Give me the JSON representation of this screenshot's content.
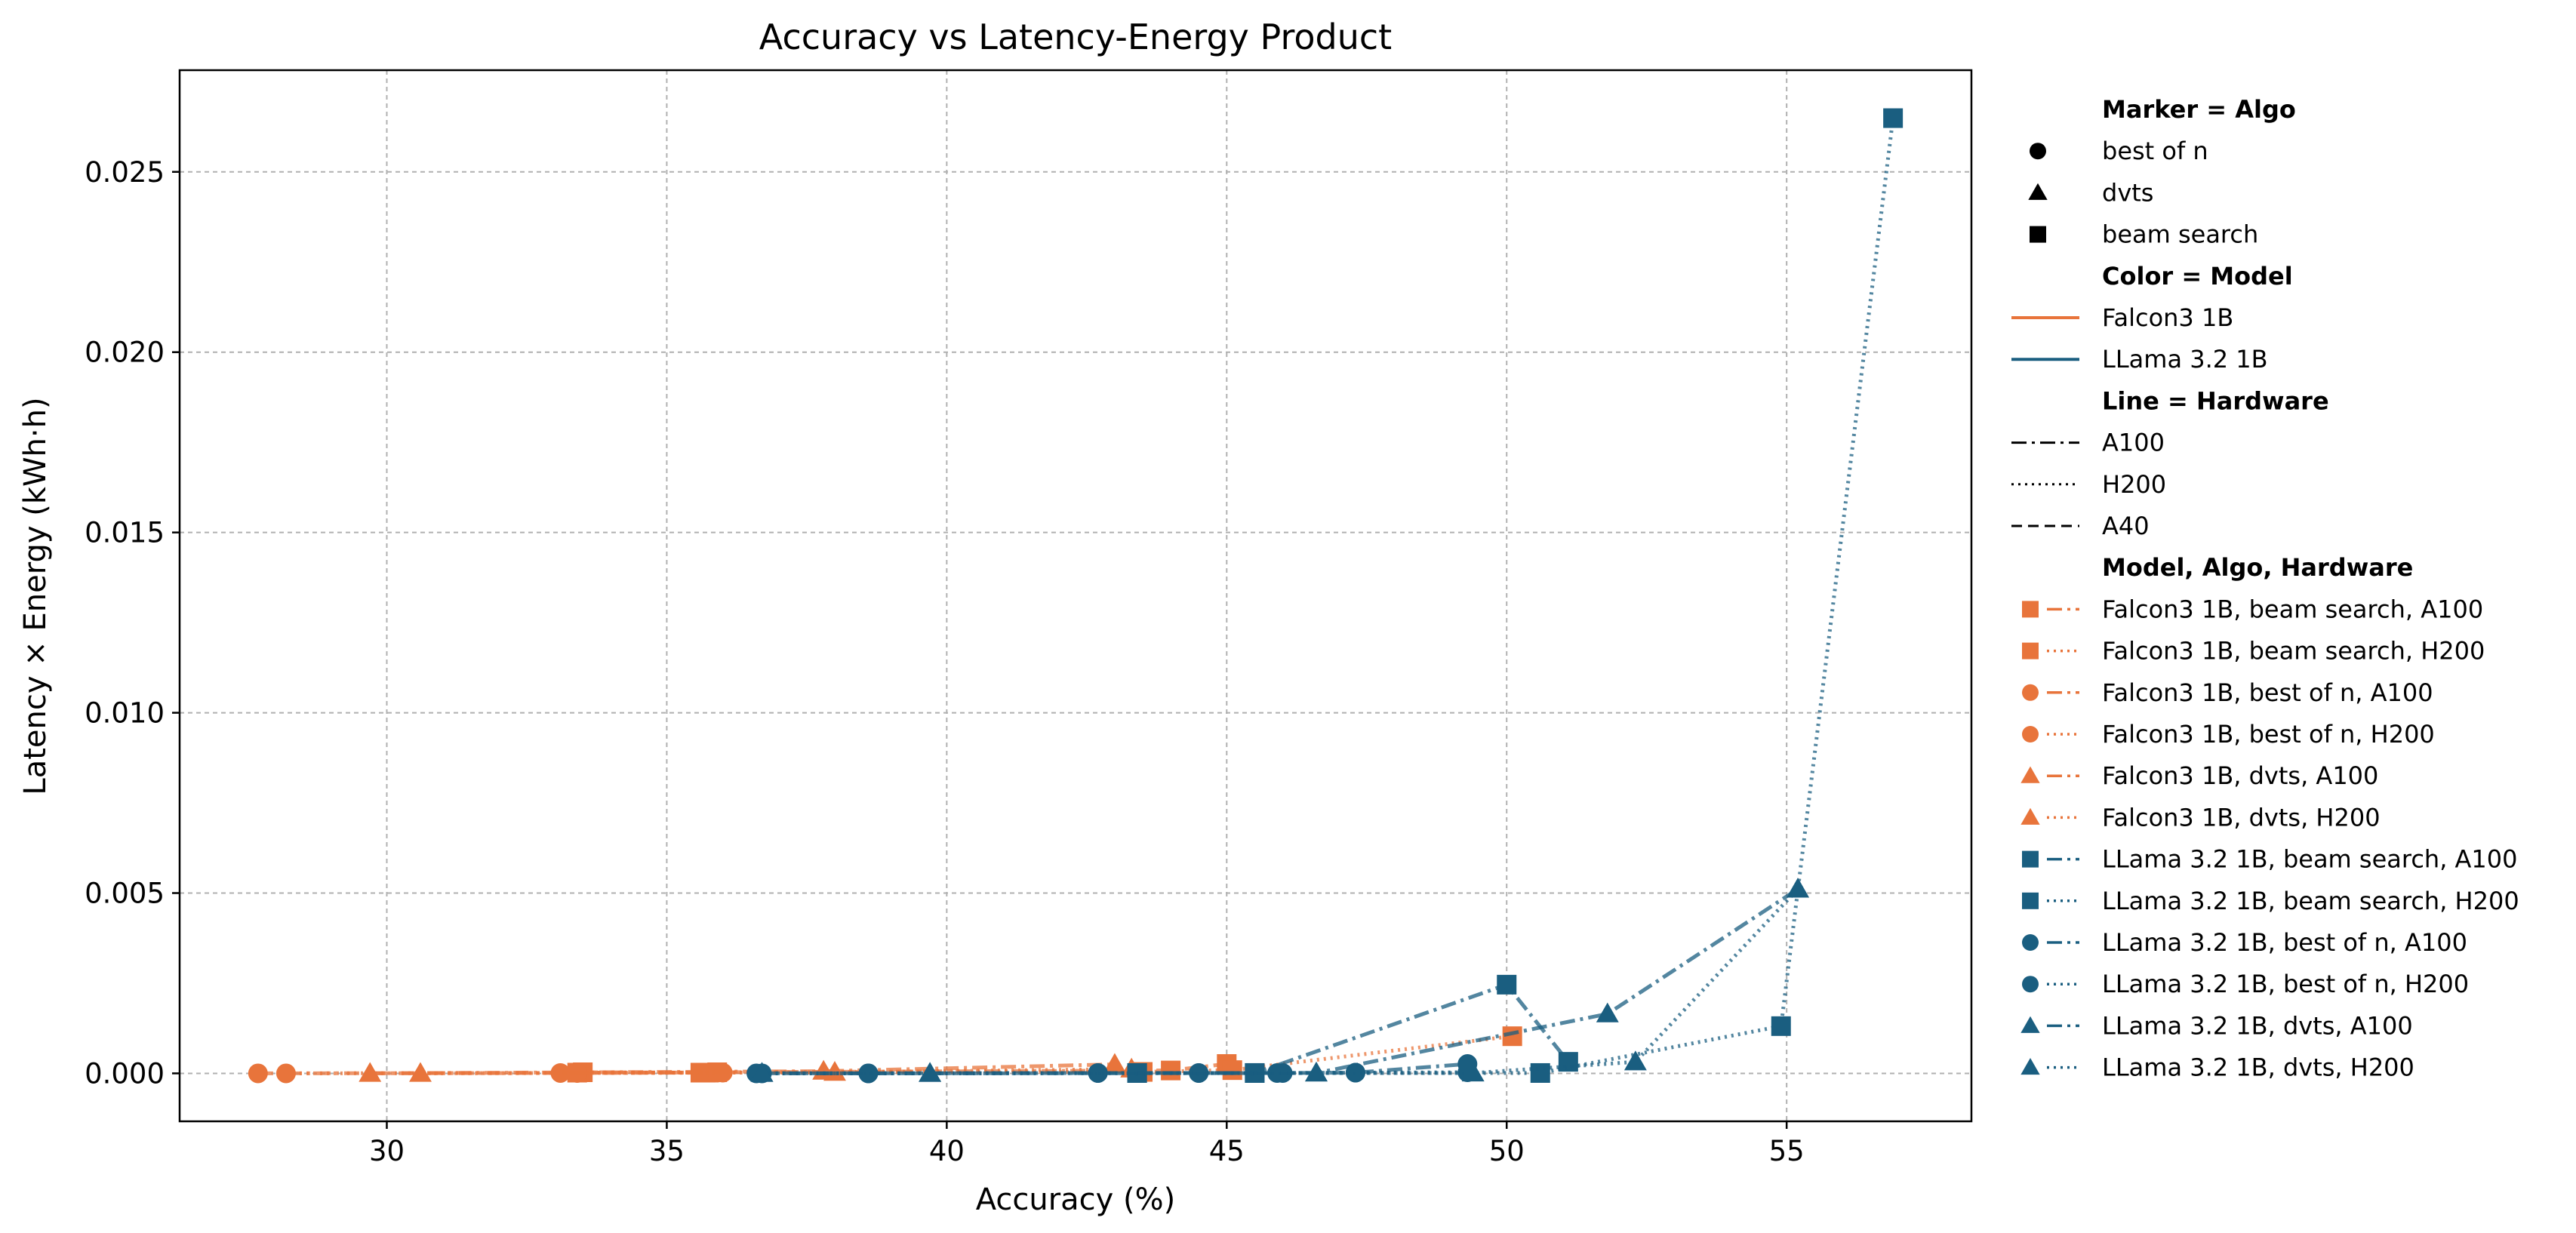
{
  "chart_data": {
    "type": "line",
    "title": "Accuracy vs Latency-Energy Product",
    "xlabel": "Accuracy (%)",
    "ylabel": "Latency × Energy (kWh·h)",
    "xlim": [
      26.3,
      58.3
    ],
    "ylim": [
      -0.00133,
      0.02782
    ],
    "xticks": [
      30,
      35,
      40,
      45,
      50,
      55
    ],
    "xtick_labels": [
      "30",
      "35",
      "40",
      "45",
      "50",
      "55"
    ],
    "yticks": [
      0,
      0.005,
      0.01,
      0.015,
      0.02,
      0.025
    ],
    "ytick_labels": [
      "0.000",
      "0.005",
      "0.010",
      "0.015",
      "0.020",
      "0.025"
    ],
    "grid": true,
    "legend_position": "outside-right",
    "colors": {
      "Falcon3 1B": "#e8743b",
      "LLama 3.2 1B": "#1a5e80"
    },
    "legend": {
      "marker_header": "Marker = Algo",
      "marker_items": [
        {
          "label": "best of n",
          "marker": "circle"
        },
        {
          "label": "dvts",
          "marker": "triangle"
        },
        {
          "label": "beam search",
          "marker": "square"
        }
      ],
      "color_header": "Color = Model",
      "color_items": [
        {
          "label": "Falcon3 1B",
          "color": "#e8743b"
        },
        {
          "label": "LLama 3.2 1B",
          "color": "#1a5e80"
        }
      ],
      "line_header": "Line = Hardware",
      "line_items": [
        {
          "label": "A100",
          "dash": "dashdot"
        },
        {
          "label": "H200",
          "dash": "dotted"
        },
        {
          "label": "A40",
          "dash": "dashed"
        }
      ],
      "series_header": "Model, Algo, Hardware"
    },
    "series": [
      {
        "name": "Falcon3 1B, beam search, A100",
        "model": "Falcon3 1B",
        "marker": "square",
        "dash": "dashdot",
        "x": [
          33.5,
          35.6,
          35.9,
          44.0,
          45.0
        ],
        "y": [
          3e-05,
          2e-05,
          3e-05,
          8e-05,
          0.00026
        ]
      },
      {
        "name": "Falcon3 1B, beam search, H200",
        "model": "Falcon3 1B",
        "marker": "square",
        "dash": "dotted",
        "x": [
          33.4,
          35.7,
          43.5,
          45.1,
          50.1
        ],
        "y": [
          2e-05,
          2e-05,
          4e-05,
          9e-05,
          0.00103
        ]
      },
      {
        "name": "Falcon3 1B, best of n, A100",
        "model": "Falcon3 1B",
        "marker": "circle",
        "dash": "dashdot",
        "x": [
          27.7,
          33.1,
          35.9
        ],
        "y": [
          0.0,
          1e-05,
          2e-05
        ]
      },
      {
        "name": "Falcon3 1B, best of n, H200",
        "model": "Falcon3 1B",
        "marker": "circle",
        "dash": "dotted",
        "x": [
          28.2,
          33.4,
          36.0
        ],
        "y": [
          0.0,
          1e-05,
          2e-05
        ]
      },
      {
        "name": "Falcon3 1B, dvts, A100",
        "model": "Falcon3 1B",
        "marker": "triangle",
        "dash": "dashdot",
        "x": [
          29.7,
          37.8,
          43.0
        ],
        "y": [
          0.0,
          6e-05,
          0.00025
        ]
      },
      {
        "name": "Falcon3 1B, dvts, H200",
        "model": "Falcon3 1B",
        "marker": "triangle",
        "dash": "dotted",
        "x": [
          30.6,
          38.0,
          43.3
        ],
        "y": [
          0.0,
          3e-05,
          0.00012
        ]
      },
      {
        "name": "LLama 3.2 1B, beam search, A100",
        "model": "LLama 3.2 1B",
        "marker": "square",
        "dash": "dashdot",
        "x": [
          43.4,
          45.5,
          50.0,
          51.1
        ],
        "y": [
          1e-05,
          1e-05,
          0.00246,
          0.00032
        ]
      },
      {
        "name": "LLama 3.2 1B, beam search, H200",
        "model": "LLama 3.2 1B",
        "marker": "square",
        "dash": "dotted",
        "x": [
          43.4,
          45.5,
          50.6,
          54.9,
          56.9
        ],
        "y": [
          1e-05,
          1e-05,
          1e-05,
          0.00131,
          0.02649
        ]
      },
      {
        "name": "LLama 3.2 1B, best of n, A100",
        "model": "LLama 3.2 1B",
        "marker": "circle",
        "dash": "dashdot",
        "x": [
          36.6,
          38.6,
          42.7,
          44.5,
          45.9,
          47.3,
          49.3
        ],
        "y": [
          0.0,
          0.0,
          1e-05,
          1e-05,
          1e-05,
          2e-05,
          0.00026
        ]
      },
      {
        "name": "LLama 3.2 1B, best of n, H200",
        "model": "LLama 3.2 1B",
        "marker": "circle",
        "dash": "dotted",
        "x": [
          36.7,
          38.6,
          42.7,
          44.5,
          46.0,
          47.3,
          49.3
        ],
        "y": [
          0.0,
          0.0,
          1e-05,
          1e-05,
          1e-05,
          2e-05,
          3e-05
        ]
      },
      {
        "name": "LLama 3.2 1B, dvts, A100",
        "model": "LLama 3.2 1B",
        "marker": "triangle",
        "dash": "dashdot",
        "x": [
          36.7,
          39.7,
          46.6,
          51.8,
          55.2
        ],
        "y": [
          0.0,
          0.0,
          1e-05,
          0.00165,
          0.00511
        ]
      },
      {
        "name": "LLama 3.2 1B, dvts, H200",
        "model": "LLama 3.2 1B",
        "marker": "triangle",
        "dash": "dotted",
        "x": [
          36.7,
          39.7,
          46.6,
          49.4,
          52.3,
          55.2
        ],
        "y": [
          0.0,
          0.0,
          1e-05,
          1e-05,
          0.00032,
          0.00511
        ]
      }
    ]
  }
}
